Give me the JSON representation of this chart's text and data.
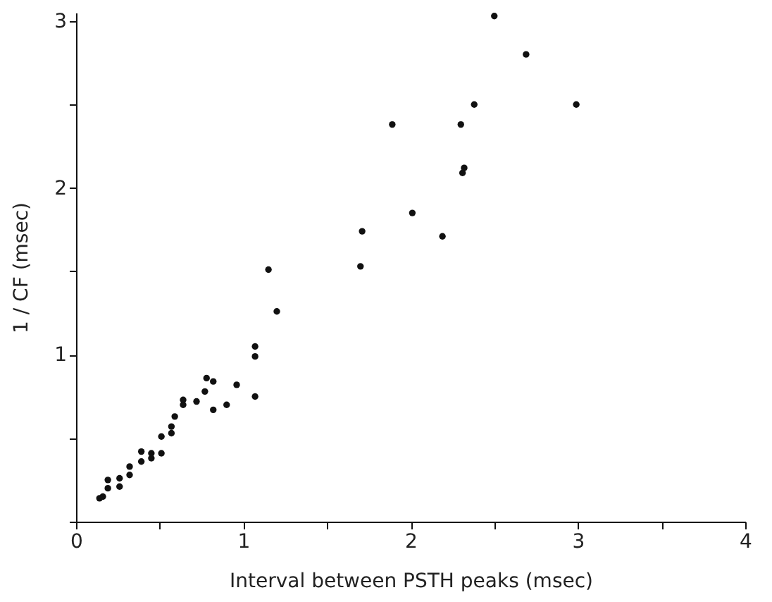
{
  "chart_data": {
    "type": "scatter",
    "xlabel": "Interval  between  PSTH  peaks  (msec)",
    "ylabel": "1 / CF  (msec)",
    "x": [
      0.14,
      0.16,
      0.19,
      0.19,
      0.26,
      0.26,
      0.32,
      0.32,
      0.39,
      0.39,
      0.45,
      0.45,
      0.51,
      0.51,
      0.57,
      0.57,
      0.59,
      0.64,
      0.64,
      0.72,
      0.77,
      0.78,
      0.82,
      0.82,
      0.9,
      0.96,
      1.07,
      1.07,
      1.07,
      1.15,
      1.2,
      1.7,
      1.71,
      1.89,
      2.01,
      2.19,
      2.3,
      2.31,
      2.32,
      2.38,
      2.5,
      2.69,
      2.99
    ],
    "series": [
      {
        "color": "#111111",
        "values": [
          0.14,
          0.15,
          0.2,
          0.25,
          0.21,
          0.26,
          0.28,
          0.33,
          0.36,
          0.42,
          0.38,
          0.41,
          0.41,
          0.51,
          0.53,
          0.57,
          0.63,
          0.7,
          0.73,
          0.72,
          0.78,
          0.86,
          0.84,
          0.67,
          0.7,
          0.82,
          0.75,
          0.99,
          1.05,
          1.51,
          1.26,
          1.53,
          1.74,
          2.38,
          1.85,
          1.71,
          2.38,
          2.09,
          2.12,
          2.5,
          3.03,
          2.8,
          2.5
        ]
      }
    ],
    "xlim": [
      0,
      4
    ],
    "ylim": [
      0,
      3.05
    ],
    "xticks": [
      0,
      {
        "value": 0.5,
        "label": null
      },
      1,
      {
        "value": 1.5,
        "label": null
      },
      2,
      {
        "value": 2.5,
        "label": null
      },
      3,
      {
        "value": 3.5,
        "label": null
      },
      4
    ],
    "yticks": [
      {
        "value": 0,
        "label": null
      },
      {
        "value": 0.5,
        "label": null
      },
      1,
      {
        "value": 1.5,
        "label": null
      },
      2,
      {
        "value": 2.5,
        "label": null
      },
      3
    ],
    "grid": false,
    "marker": "circle"
  }
}
